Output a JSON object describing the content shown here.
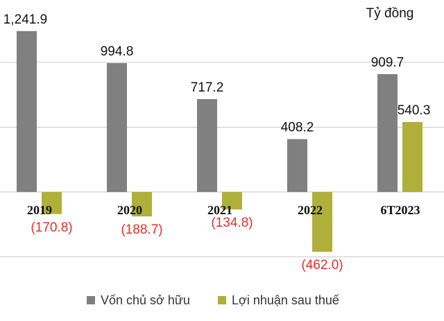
{
  "chart_data": {
    "type": "bar",
    "unit_label": "Tỷ đồng",
    "categories": [
      "2019",
      "2020",
      "2021",
      "2022",
      "6T2023"
    ],
    "series": [
      {
        "name": "Vốn chủ sở hữu",
        "color": "#808080",
        "values": [
          1241.9,
          994.8,
          717.2,
          408.2,
          909.7
        ],
        "value_labels": [
          "1,241.9",
          "994.8",
          "717.2",
          "408.2",
          "909.7"
        ]
      },
      {
        "name": "Lợi nhuận sau thuế",
        "color": "#aeb03a",
        "values": [
          -170.8,
          -188.7,
          -134.8,
          -462.0,
          540.3
        ],
        "value_labels": [
          "(170.8)",
          "(188.7)",
          "(134.8)",
          "(462.0)",
          "540.3"
        ]
      }
    ],
    "ylim": [
      -600,
      1300
    ],
    "yticks": [
      -500,
      0,
      500,
      1000
    ],
    "grid": true
  }
}
